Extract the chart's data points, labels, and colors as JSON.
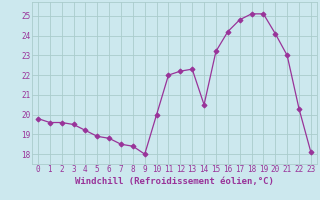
{
  "x": [
    0,
    1,
    2,
    3,
    4,
    5,
    6,
    7,
    8,
    9,
    10,
    11,
    12,
    13,
    14,
    15,
    16,
    17,
    18,
    19,
    20,
    21,
    22,
    23
  ],
  "y": [
    19.8,
    19.6,
    19.6,
    19.5,
    19.2,
    18.9,
    18.8,
    18.5,
    18.4,
    18.0,
    20.0,
    22.0,
    22.2,
    22.3,
    20.5,
    23.2,
    24.2,
    24.8,
    25.1,
    25.1,
    24.1,
    23.0,
    20.3,
    18.1
  ],
  "line_color": "#993399",
  "marker": "D",
  "bg_color": "#cce8ee",
  "grid_color": "#aacccc",
  "ylim": [
    17.5,
    25.7
  ],
  "yticks": [
    18,
    19,
    20,
    21,
    22,
    23,
    24,
    25
  ],
  "xticks": [
    0,
    1,
    2,
    3,
    4,
    5,
    6,
    7,
    8,
    9,
    10,
    11,
    12,
    13,
    14,
    15,
    16,
    17,
    18,
    19,
    20,
    21,
    22,
    23
  ],
  "tick_color": "#993399",
  "tick_fontsize": 5.5,
  "xlabel": "Windchill (Refroidissement éolien,°C)",
  "xlabel_fontsize": 6.5,
  "xlim": [
    -0.5,
    23.5
  ]
}
